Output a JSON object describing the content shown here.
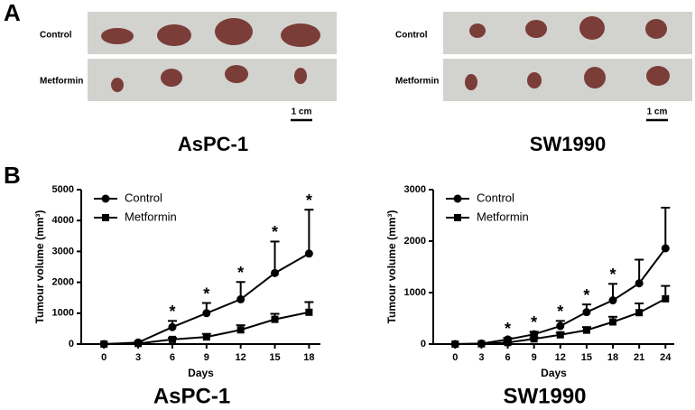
{
  "figure": {
    "panel_a": {
      "label": "A",
      "groups": [
        {
          "title": "AsPC-1",
          "rows": [
            "Control",
            "Metformin"
          ],
          "scale": "1 cm"
        },
        {
          "title": "SW1990",
          "rows": [
            "Control",
            "Metformin"
          ],
          "scale": "1 cm"
        }
      ]
    },
    "panel_b": {
      "label": "B"
    }
  },
  "chart_data": [
    {
      "type": "line",
      "title": "AsPC-1",
      "x_label": "Days",
      "y_label": "Tumour volume (mm³)",
      "x": [
        0,
        3,
        6,
        9,
        12,
        15,
        18
      ],
      "xlim": [
        -2,
        19
      ],
      "xticks": [
        0,
        3,
        6,
        9,
        12,
        15,
        18
      ],
      "ylim": [
        0,
        5000
      ],
      "yticks": [
        0,
        1000,
        2000,
        3000,
        4000,
        5000
      ],
      "legend": "upper left",
      "series": [
        {
          "name": "Control",
          "color": "#000000",
          "marker": "circle",
          "values": [
            0,
            50,
            550,
            1000,
            1450,
            2300,
            2930
          ],
          "errors": [
            0,
            0,
            200,
            330,
            560,
            1020,
            1420
          ]
        },
        {
          "name": "Metformin",
          "color": "#000000",
          "marker": "square",
          "values": [
            0,
            20,
            150,
            230,
            460,
            800,
            1030
          ],
          "errors": [
            0,
            0,
            50,
            100,
            150,
            180,
            330
          ]
        }
      ],
      "annotations": [
        {
          "x": 6,
          "text": "*"
        },
        {
          "x": 9,
          "text": "*"
        },
        {
          "x": 12,
          "text": "*"
        },
        {
          "x": 15,
          "text": "*"
        },
        {
          "x": 18,
          "text": "*"
        }
      ]
    },
    {
      "type": "line",
      "title": "SW1990",
      "x_label": "Days",
      "y_label": "Tumour volume (mm³)",
      "x": [
        0,
        3,
        6,
        9,
        12,
        15,
        18,
        21,
        24
      ],
      "xlim": [
        -2.5,
        25
      ],
      "xticks": [
        0,
        3,
        6,
        9,
        12,
        15,
        18,
        21,
        24
      ],
      "ylim": [
        0,
        3000
      ],
      "yticks": [
        0,
        1000,
        2000,
        3000
      ],
      "legend": "upper left",
      "series": [
        {
          "name": "Control",
          "color": "#000000",
          "marker": "circle",
          "values": [
            0,
            10,
            90,
            190,
            350,
            620,
            850,
            1180,
            1860
          ],
          "errors": [
            0,
            0,
            30,
            50,
            100,
            150,
            320,
            460,
            790
          ]
        },
        {
          "name": "Metformin",
          "color": "#000000",
          "marker": "square",
          "values": [
            0,
            5,
            30,
            100,
            180,
            270,
            430,
            610,
            880
          ],
          "errors": [
            0,
            0,
            10,
            30,
            40,
            60,
            100,
            180,
            250
          ]
        }
      ],
      "annotations": [
        {
          "x": 6,
          "text": "*"
        },
        {
          "x": 9,
          "text": "*"
        },
        {
          "x": 12,
          "text": "*"
        },
        {
          "x": 15,
          "text": "*"
        },
        {
          "x": 18,
          "text": "*"
        }
      ]
    }
  ]
}
